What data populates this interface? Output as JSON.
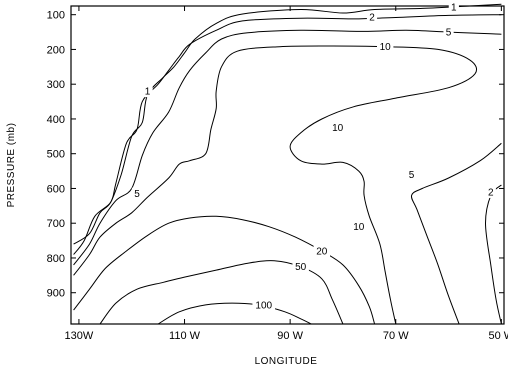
{
  "chart_data": {
    "type": "contour",
    "title": "",
    "xlabel": "LONGITUDE",
    "ylabel": "PRESSURE (mb)",
    "xlim": [
      131.5,
      49.5
    ],
    "ylim": [
      75,
      990
    ],
    "x_axis_direction": "west-longitude-decreasing-rightward",
    "y_axis_direction": "pressure-increasing-downward",
    "x_ticks": [
      {
        "value": 130,
        "label": "130W"
      },
      {
        "value": 110,
        "label": "110 W"
      },
      {
        "value": 90,
        "label": "90 W"
      },
      {
        "value": 70,
        "label": "70 W"
      },
      {
        "value": 50,
        "label": "50 W"
      }
    ],
    "y_ticks": [
      {
        "value": 100,
        "label": "100"
      },
      {
        "value": 200,
        "label": "200"
      },
      {
        "value": 300,
        "label": "300"
      },
      {
        "value": 400,
        "label": "400"
      },
      {
        "value": 500,
        "label": "500"
      },
      {
        "value": 600,
        "label": "600"
      },
      {
        "value": 700,
        "label": "700"
      },
      {
        "value": 800,
        "label": "800"
      },
      {
        "value": 900,
        "label": "900"
      }
    ],
    "contours": [
      {
        "level": "1",
        "paths": [
          [
            [
              131,
              760
            ],
            [
              128,
              730
            ],
            [
              126,
              670
            ],
            [
              124,
              640
            ],
            [
              122,
              560
            ],
            [
              120,
              450
            ],
            [
              118,
              410
            ],
            [
              117,
              330
            ],
            [
              114,
              280
            ],
            [
              112,
              250
            ],
            [
              110,
              210
            ],
            [
              108,
              170
            ],
            [
              104,
              125
            ],
            [
              99,
              98
            ],
            [
              88,
              85
            ],
            [
              80,
              95
            ],
            [
              74,
              85
            ],
            [
              65,
              82
            ],
            [
              56,
              75
            ],
            [
              50,
              70
            ]
          ]
        ]
      },
      {
        "level": "2",
        "paths": [
          [
            [
              131,
              790
            ],
            [
              129,
              750
            ],
            [
              127,
              680
            ],
            [
              124,
              640
            ],
            [
              123,
              585
            ],
            [
              121,
              470
            ],
            [
              119,
              430
            ],
            [
              118,
              350
            ],
            [
              115,
              300
            ],
            [
              113,
              260
            ],
            [
              111,
              220
            ],
            [
              109,
              185
            ],
            [
              104,
              145
            ],
            [
              99,
              118
            ],
            [
              88,
              110
            ],
            [
              78,
              112
            ],
            [
              70,
              108
            ],
            [
              60,
              102
            ],
            [
              50,
              100
            ]
          ]
        ]
      },
      {
        "level": "5",
        "paths": [
          [
            [
              131,
              820
            ],
            [
              128,
              760
            ],
            [
              126,
              700
            ],
            [
              123,
              635
            ],
            [
              120,
              600
            ],
            [
              118,
              505
            ],
            [
              116,
              440
            ],
            [
              113,
              380
            ],
            [
              111,
              310
            ],
            [
              109,
              260
            ],
            [
              106,
              210
            ],
            [
              103,
              170
            ],
            [
              98,
              152
            ],
            [
              88,
              145
            ],
            [
              76,
              148
            ],
            [
              68,
              145
            ],
            [
              60,
              150
            ],
            [
              52,
              155
            ],
            [
              50,
              156
            ]
          ]
        ]
      },
      {
        "level": "10",
        "paths": [
          [
            [
              131,
              850
            ],
            [
              128,
              790
            ],
            [
              126,
              740
            ],
            [
              123,
              700
            ],
            [
              120,
              670
            ],
            [
              117,
              625
            ],
            [
              113,
              570
            ],
            [
              111,
              530
            ],
            [
              109,
              520
            ],
            [
              106,
              500
            ],
            [
              105,
              430
            ],
            [
              104,
              370
            ],
            [
              104,
              320
            ],
            [
              103,
              250
            ],
            [
              100,
              205
            ],
            [
              92,
              192
            ],
            [
              82,
              190
            ],
            [
              72,
              192
            ],
            [
              62,
              200
            ],
            [
              56,
              230
            ],
            [
              55,
              270
            ],
            [
              60,
              310
            ],
            [
              70,
              340
            ],
            [
              78,
              365
            ],
            [
              84,
              400
            ],
            [
              88,
              440
            ],
            [
              90,
              480
            ],
            [
              88,
              520
            ],
            [
              84,
              530
            ],
            [
              80,
              525
            ],
            [
              77,
              550
            ],
            [
              76,
              580
            ],
            [
              76,
              620
            ],
            [
              75,
              680
            ],
            [
              73,
              760
            ],
            [
              72,
              840
            ],
            [
              71,
              920
            ],
            [
              70,
              990
            ]
          ]
        ]
      },
      {
        "level": "5",
        "paths": [
          [
            [
              50,
              470
            ],
            [
              54,
              520
            ],
            [
              60,
              570
            ],
            [
              65,
              600
            ],
            [
              67,
              620
            ],
            [
              66,
              660
            ],
            [
              64,
              740
            ],
            [
              62,
              820
            ],
            [
              60,
              910
            ],
            [
              58,
              990
            ]
          ]
        ]
      },
      {
        "level": "2",
        "paths": [
          [
            [
              50,
              590
            ],
            [
              52,
              620
            ],
            [
              53,
              700
            ],
            [
              52,
              820
            ],
            [
              51,
              920
            ],
            [
              50,
              990
            ]
          ]
        ]
      },
      {
        "level": "20",
        "paths": [
          [
            [
              131,
              950
            ],
            [
              128,
              890
            ],
            [
              125,
              830
            ],
            [
              121,
              780
            ],
            [
              117,
              735
            ],
            [
              113,
              700
            ],
            [
              109,
              685
            ],
            [
              104,
              680
            ],
            [
              99,
              690
            ],
            [
              94,
              710
            ],
            [
              89,
              740
            ],
            [
              84,
              780
            ],
            [
              80,
              820
            ],
            [
              77,
              880
            ],
            [
              75,
              940
            ],
            [
              74,
              990
            ]
          ]
        ]
      },
      {
        "level": "50",
        "paths": [
          [
            [
              126,
              990
            ],
            [
              123,
              930
            ],
            [
              119,
              890
            ],
            [
              114,
              870
            ],
            [
              110,
              855
            ],
            [
              104,
              835
            ],
            [
              98,
              815
            ],
            [
              93,
              808
            ],
            [
              88,
              825
            ],
            [
              84,
              860
            ],
            [
              82,
              920
            ],
            [
              80,
              990
            ]
          ]
        ]
      },
      {
        "level": "100",
        "paths": [
          [
            [
              115,
              990
            ],
            [
              111,
              955
            ],
            [
              106,
              935
            ],
            [
              101,
              930
            ],
            [
              96,
              935
            ],
            [
              91,
              955
            ],
            [
              88,
              975
            ],
            [
              86,
              990
            ]
          ]
        ]
      }
    ],
    "contour_labels": [
      {
        "text": "1",
        "x": 59,
        "y": 78
      },
      {
        "text": "2",
        "x": 74.5,
        "y": 107
      },
      {
        "text": "5",
        "x": 60,
        "y": 150
      },
      {
        "text": "10",
        "x": 72,
        "y": 192
      },
      {
        "text": "1",
        "x": 117,
        "y": 320
      },
      {
        "text": "10",
        "x": 81,
        "y": 425
      },
      {
        "text": "5",
        "x": 67,
        "y": 560
      },
      {
        "text": "5",
        "x": 119,
        "y": 615
      },
      {
        "text": "2",
        "x": 52,
        "y": 610
      },
      {
        "text": "10",
        "x": 77,
        "y": 710
      },
      {
        "text": "20",
        "x": 84,
        "y": 780
      },
      {
        "text": "50",
        "x": 88,
        "y": 825
      },
      {
        "text": "100",
        "x": 95,
        "y": 935
      }
    ]
  }
}
